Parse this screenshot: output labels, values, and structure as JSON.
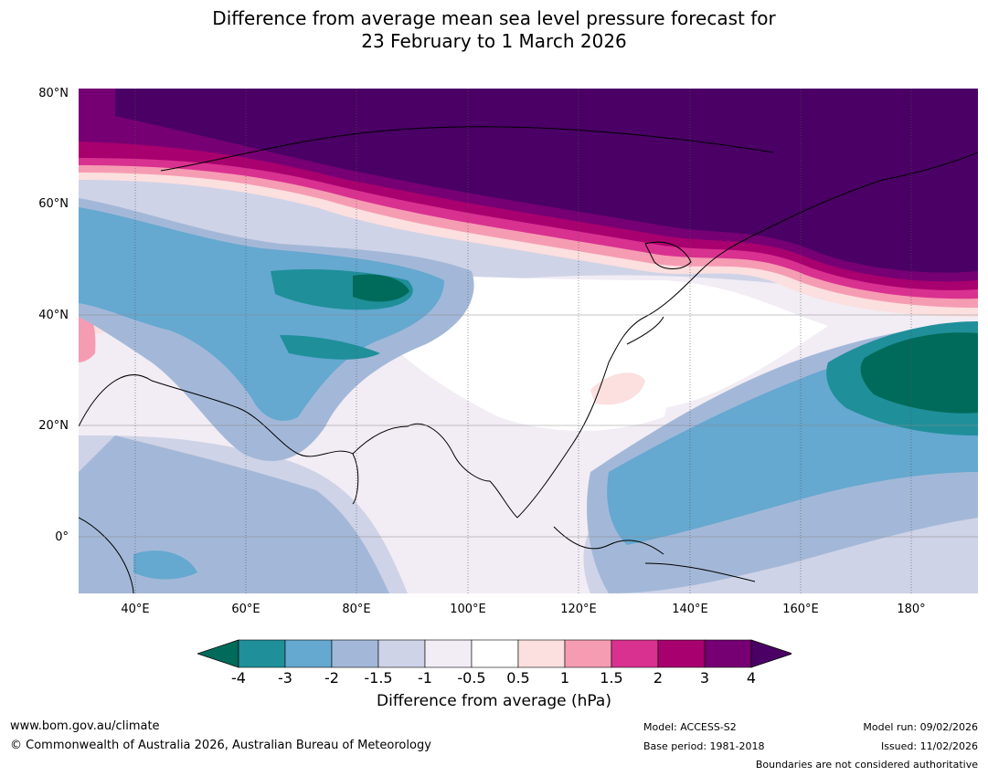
{
  "title_line1": "Difference from average mean sea level pressure forecast for",
  "title_line2": "23 February to 1 March 2026",
  "axes": {
    "lat_labels": [
      "80°N",
      "60°N",
      "40°N",
      "20°N",
      "0°"
    ],
    "lon_labels": [
      "40°E",
      "60°E",
      "80°E",
      "100°E",
      "120°E",
      "140°E",
      "160°E",
      "180°"
    ]
  },
  "colorbar": {
    "label": "Difference from average (hPa)",
    "ticks": [
      "-4",
      "-3",
      "-2",
      "-1.5",
      "-1",
      "-0.5",
      "0.5",
      "1",
      "1.5",
      "2",
      "3",
      "4"
    ],
    "colors": [
      "#006b5a",
      "#1f8f9a",
      "#65a8d0",
      "#a3b8d8",
      "#cfd3e7",
      "#f2ecf4",
      "#ffffff",
      "#fcdfdf",
      "#f59cb3",
      "#d9318f",
      "#a8006e",
      "#760073",
      "#4a0065"
    ]
  },
  "footer": {
    "website": "www.bom.gov.au/climate",
    "copyright": "© Commonwealth of Australia 2026, Australian Bureau of Meteorology",
    "model": "Model: ACCESS-S2",
    "base_period": "Base period: 1981-2018",
    "model_run": "Model run: 09/02/2026",
    "issued": "Issued: 11/02/2026",
    "boundaries_note": "Boundaries are not considered authoritative"
  }
}
